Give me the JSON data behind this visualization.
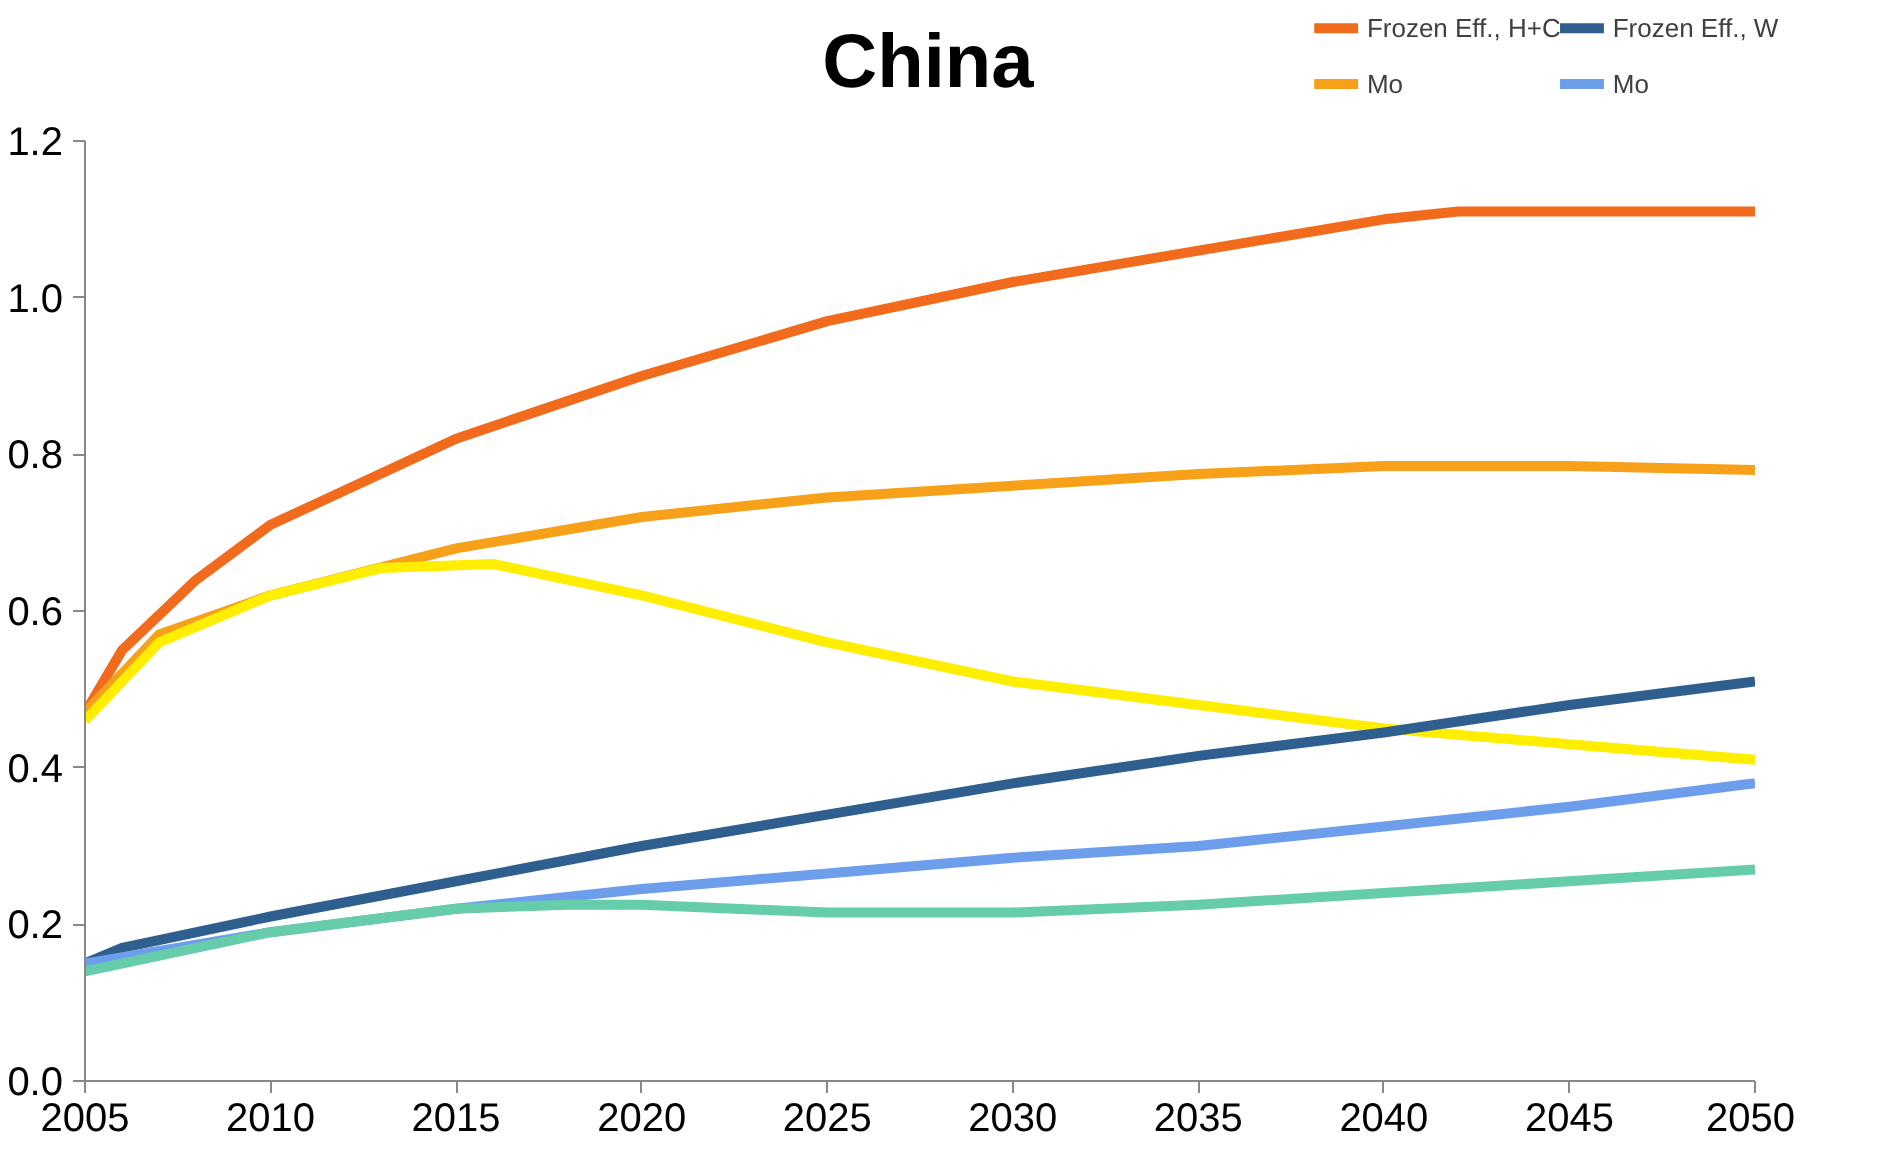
{
  "chart_data": {
    "type": "line",
    "title": "China",
    "legend": "top right",
    "grid": false,
    "marker": "none",
    "line_style": "solid",
    "xlim": [
      2005,
      2050
    ],
    "xticks": [
      2005,
      2010,
      2015,
      2020,
      2025,
      2030,
      2035,
      2040,
      2045,
      2050
    ],
    "ylim": [
      0,
      1.2
    ],
    "yticks": [
      {
        "value": 0,
        "label": "0.0"
      },
      {
        "value": 0.2,
        "label": "0.2"
      },
      {
        "value": 0.4,
        "label": "0.4"
      },
      {
        "value": 0.6,
        "label": "0.6"
      },
      {
        "value": 0.8,
        "label": "0.8"
      },
      {
        "value": 1,
        "label": "1.0"
      },
      {
        "value": 1.2,
        "label": "1.2"
      }
    ],
    "series": [
      {
        "name": "Frozen Eff., H+C",
        "color": "#f26b1d",
        "x": [
          2005,
          2006,
          2008,
          2010,
          2015,
          2020,
          2025,
          2030,
          2035,
          2040,
          2042,
          2045,
          2050
        ],
        "values": [
          0.47,
          0.55,
          0.64,
          0.71,
          0.82,
          0.9,
          0.97,
          1.02,
          1.06,
          1.1,
          1.11,
          1.11,
          1.11
        ]
      },
      {
        "name": "Mo",
        "color": "#f7a11a",
        "x": [
          2005,
          2007,
          2010,
          2015,
          2020,
          2025,
          2030,
          2035,
          2040,
          2045,
          2050
        ],
        "values": [
          0.47,
          0.57,
          0.62,
          0.68,
          0.72,
          0.745,
          0.76,
          0.775,
          0.785,
          0.785,
          0.78
        ]
      },
      {
        "color": "#ffee00",
        "x": [
          2005,
          2007,
          2010,
          2013,
          2016,
          2020,
          2025,
          2030,
          2035,
          2040,
          2045,
          2050
        ],
        "values": [
          0.46,
          0.56,
          0.62,
          0.655,
          0.66,
          0.62,
          0.56,
          0.51,
          0.48,
          0.45,
          0.43,
          0.41
        ]
      },
      {
        "name": "Frozen Eff., W",
        "color": "#2e5f8e",
        "x": [
          2005,
          2006,
          2010,
          2015,
          2020,
          2025,
          2030,
          2035,
          2040,
          2045,
          2050
        ],
        "values": [
          0.15,
          0.17,
          0.21,
          0.255,
          0.3,
          0.34,
          0.38,
          0.415,
          0.445,
          0.48,
          0.51
        ]
      },
      {
        "name": "Mo",
        "color": "#6d9eeb",
        "x": [
          2005,
          2010,
          2015,
          2020,
          2025,
          2030,
          2035,
          2040,
          2045,
          2050
        ],
        "values": [
          0.15,
          0.19,
          0.22,
          0.245,
          0.265,
          0.285,
          0.3,
          0.325,
          0.35,
          0.38
        ]
      },
      {
        "color": "#66cdaa",
        "x": [
          2005,
          2010,
          2015,
          2018,
          2020,
          2025,
          2030,
          2035,
          2040,
          2045,
          2050
        ],
        "values": [
          0.14,
          0.19,
          0.22,
          0.225,
          0.225,
          0.215,
          0.215,
          0.225,
          0.24,
          0.255,
          0.27
        ]
      }
    ]
  }
}
